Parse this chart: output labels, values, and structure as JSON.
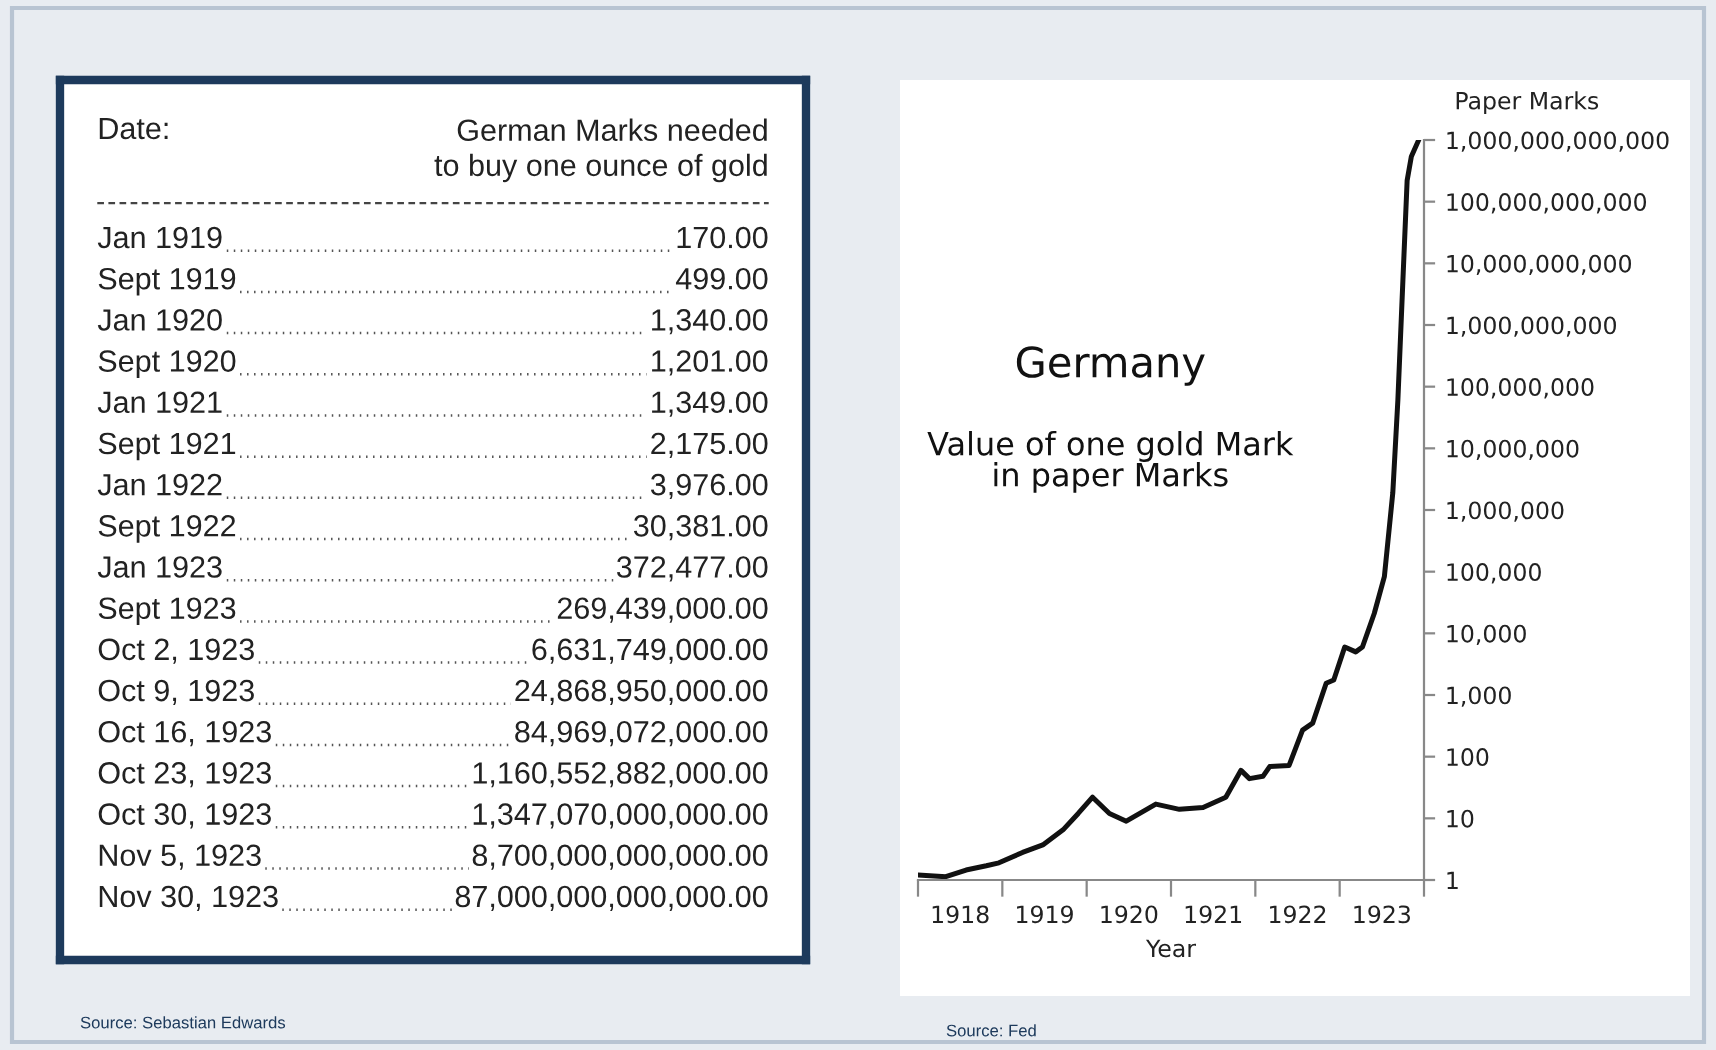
{
  "chart_data": [
    {
      "type": "other",
      "xlabel": "Date:",
      "ylabel": "German Marks needed\nto buy one ounce of gold",
      "categories": [
        "Jan 1919",
        "Sept 1919",
        "Jan 1920",
        "Sept 1920",
        "Jan 1921",
        "Sept 1921",
        "Jan 1922",
        "Sept 1922",
        "Jan 1923",
        "Sept 1923",
        "Oct 2, 1923",
        "Oct 9, 1923",
        "Oct 16, 1923",
        "Oct 23, 1923",
        "Oct 30, 1923",
        "Nov 5, 1923",
        "Nov 30, 1923"
      ],
      "value_labels": [
        "170.00",
        "499.00",
        "1,340.00",
        "1,201.00",
        "1,349.00",
        "2,175.00",
        "3,976.00",
        "30,381.00",
        "372,477.00",
        "269,439,000.00",
        "6,631,749,000.00",
        "24,868,950,000.00",
        "84,969,072,000.00",
        "1,160,552,882,000.00",
        "1,347,070,000,000.00",
        "8,700,000,000,000.00",
        "87,000,000,000,000.00"
      ],
      "annotations": [
        "Source: Sebastian Edwards"
      ]
    },
    {
      "type": "line",
      "title": "Germany",
      "subtitle": "Value of one gold Mark\nin paper Marks",
      "xlabel": "Year",
      "ylabel": "Paper Marks",
      "log": "y",
      "grid": false,
      "color": "#111111",
      "x": [
        1918.0,
        1918.33,
        1918.57,
        1918.81,
        1918.96,
        1919.24,
        1919.48,
        1919.72,
        1919.9,
        1920.07,
        1920.27,
        1920.47,
        1920.82,
        1921.1,
        1921.38,
        1921.65,
        1921.83,
        1921.93,
        1922.09,
        1922.17,
        1922.4,
        1922.56,
        1922.68,
        1922.84,
        1922.93,
        1923.06,
        1923.19,
        1923.27,
        1923.41,
        1923.53,
        1923.63,
        1923.69,
        1923.75,
        1923.8,
        1923.85,
        1923.93
      ],
      "values": [
        1.2,
        1.13,
        1.45,
        1.7,
        1.9,
        2.8,
        3.7,
        6.5,
        12,
        22,
        12,
        9,
        17,
        14,
        15,
        22,
        60,
        44,
        48,
        69,
        72,
        270,
        350,
        1550,
        1750,
        6000,
        5000,
        6000,
        21000,
        83000,
        1900000,
        60000000,
        5400000000,
        220000000000,
        540000000000,
        950000000000
      ],
      "xlim": [
        1918,
        1924
      ],
      "ylim": [
        1,
        1000000000000
      ],
      "xticks": [
        {
          "value": 1918,
          "label": null
        },
        {
          "value": 1919,
          "label": null
        },
        {
          "value": 1920,
          "label": null
        },
        {
          "value": 1921,
          "label": null
        },
        {
          "value": 1922,
          "label": null
        },
        {
          "value": 1923,
          "label": null
        },
        {
          "value": 1924,
          "label": null
        },
        {
          "value": 1918.5,
          "label": "1918"
        },
        {
          "value": 1919.5,
          "label": "1919"
        },
        {
          "value": 1920.5,
          "label": "1920"
        },
        {
          "value": 1921.5,
          "label": "1921"
        },
        {
          "value": 1922.5,
          "label": "1922"
        },
        {
          "value": 1923.5,
          "label": "1923"
        }
      ],
      "yticks": [
        1,
        10,
        100,
        {
          "value": 1000,
          "label": "1,000"
        },
        {
          "value": 10000,
          "label": "10,000"
        },
        {
          "value": 100000,
          "label": "100,000"
        },
        {
          "value": 1000000,
          "label": "1,000,000"
        },
        {
          "value": 10000000,
          "label": "10,000,000"
        },
        {
          "value": 100000000,
          "label": "100,000,000"
        },
        {
          "value": 1000000000,
          "label": "1,000,000,000"
        },
        {
          "value": 10000000000,
          "label": "10,000,000,000"
        },
        {
          "value": 100000000000,
          "label": "100,000,000,000"
        },
        {
          "value": 1000000000000,
          "label": "1,000,000,000,000"
        }
      ],
      "annotations": [
        "Source: Fed"
      ]
    }
  ]
}
